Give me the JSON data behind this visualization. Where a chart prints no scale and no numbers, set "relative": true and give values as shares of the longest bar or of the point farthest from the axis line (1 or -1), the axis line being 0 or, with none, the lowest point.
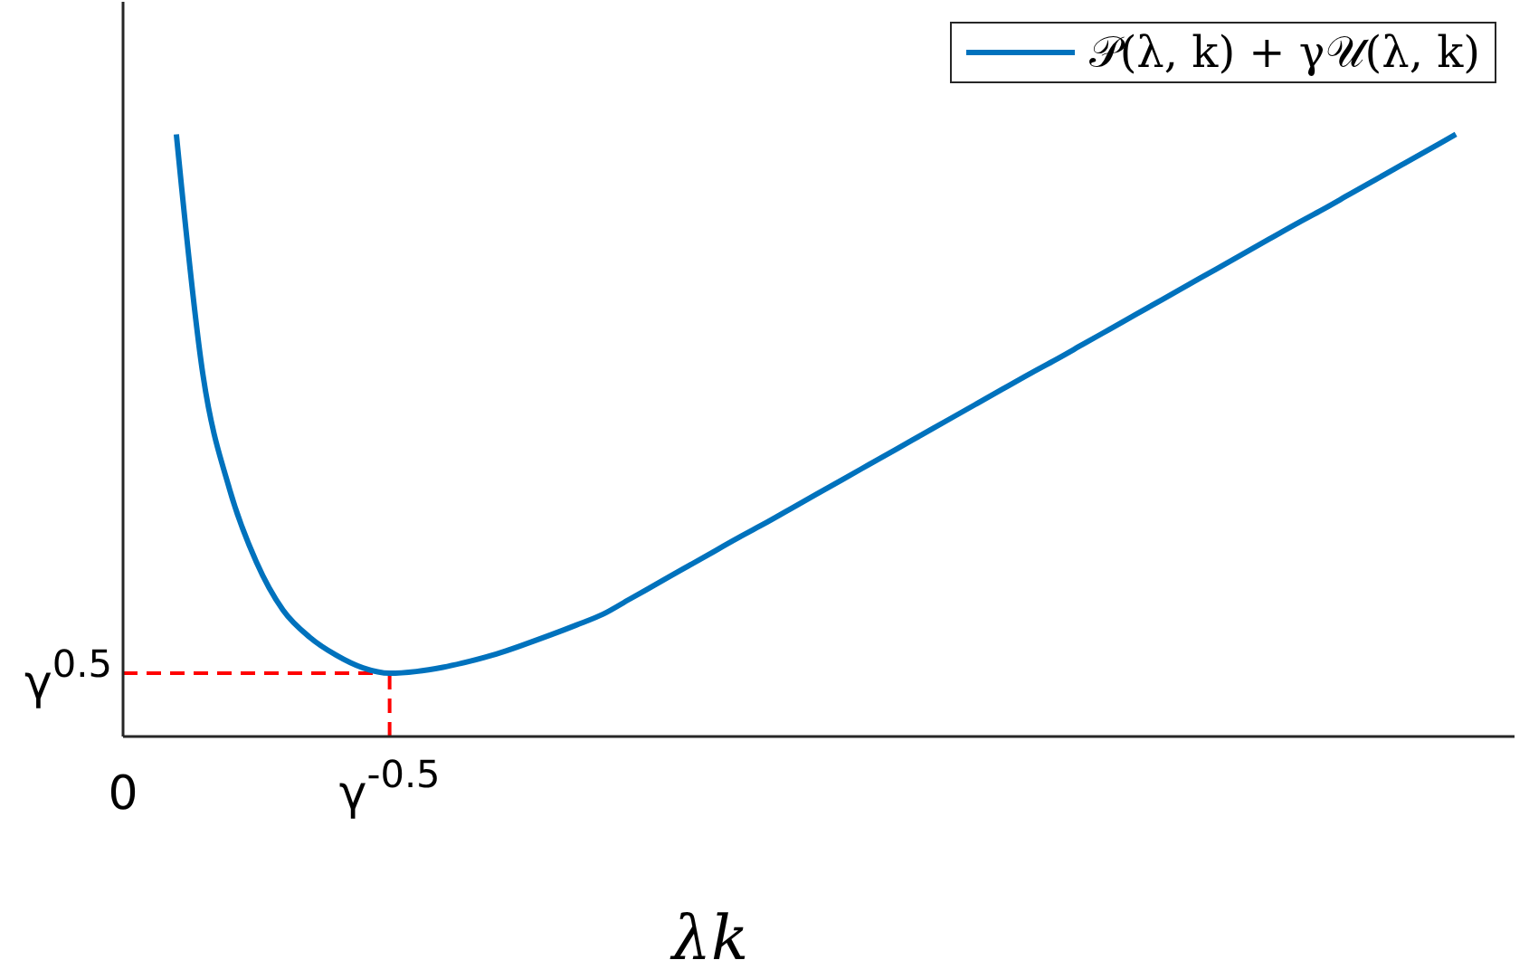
{
  "chart_data": {
    "type": "line",
    "xlabel": "λk",
    "relative": true,
    "categories": [
      "0",
      null,
      null,
      null,
      null,
      null,
      null,
      null,
      null,
      null,
      "γ$^{-0.5}$",
      null,
      null,
      null,
      null,
      null,
      null,
      null,
      null,
      null,
      null,
      null,
      null,
      null,
      null,
      null,
      null,
      null,
      null,
      null,
      null,
      null,
      null,
      null,
      null,
      null,
      null,
      null,
      null,
      null,
      null,
      null,
      null,
      null,
      null,
      null,
      null,
      null,
      null,
      null,
      null,
      null,
      null
    ],
    "series": [
      {
        "name": "𝒫(λ, k) + γ𝒰(λ, k)",
        "color": "#0072bd",
        "values": [
          null,
          null,
          1.0,
          0.6,
          0.41,
          0.29,
          0.21,
          0.165,
          0.135,
          0.114,
          0.105,
          0.108,
          0.115,
          0.125,
          0.137,
          0.152,
          0.168,
          0.185,
          0.203,
          0.228,
          0.253,
          0.278,
          0.303,
          0.328,
          0.352,
          0.377,
          0.402,
          0.427,
          0.452,
          0.477,
          0.502,
          0.527,
          0.552,
          0.577,
          0.602,
          0.626,
          0.651,
          0.676,
          0.701,
          0.726,
          0.751,
          0.776,
          0.801,
          0.826,
          0.851,
          0.875,
          0.9,
          0.925,
          0.95,
          0.975,
          1.0,
          null,
          null
        ]
      }
    ],
    "ref_lines": [
      {
        "axis": "x",
        "value": "γ$^{-0.5}$",
        "color": "#ff0000",
        "line_style": "dashed"
      },
      {
        "axis": "y",
        "value": 0.105,
        "label": "γ$^{0.5}$",
        "color": "#ff0000",
        "line_style": "dashed"
      }
    ],
    "legend": "top right",
    "marker": "none",
    "line_style": "solid"
  }
}
